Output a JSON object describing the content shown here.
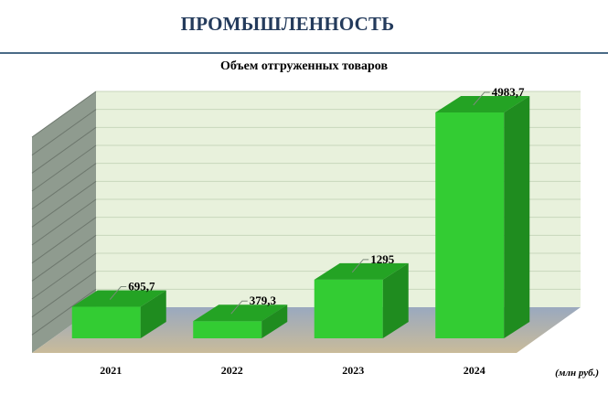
{
  "header": {
    "title": "ПРОМЫШЛЕННОСТЬ"
  },
  "chart_data": {
    "type": "bar",
    "title": "Объем отгруженных товаров",
    "categories": [
      "2021",
      "2022",
      "2023",
      "2024"
    ],
    "values": [
      695.7,
      379.3,
      1295,
      4983.7
    ],
    "value_labels": [
      "695,7",
      "379,3",
      "1295",
      "4983,7"
    ],
    "unit": "(млн руб.)",
    "xlabel": "",
    "ylabel": "",
    "ylim": [
      0,
      6000
    ],
    "grid": true,
    "legend": "none",
    "style": "3d-column"
  },
  "colors": {
    "bar_front": "#33cc33",
    "bar_top": "#24a324",
    "bar_side": "#1f8c1f",
    "back_wall": "#e8f1dc",
    "side_wall": "#8f9b8f",
    "floor": "#a9b1ad",
    "header_text": "#243b5c",
    "header_rule": "#4a6a86"
  }
}
